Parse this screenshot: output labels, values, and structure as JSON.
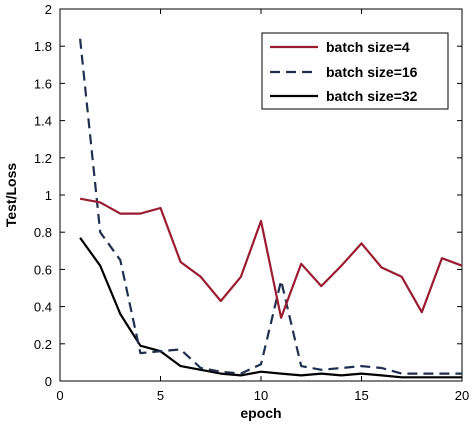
{
  "chart_data": {
    "type": "line",
    "xlabel": "epoch",
    "ylabel": "Test/Loss",
    "xlim": [
      0,
      20
    ],
    "ylim": [
      0,
      2
    ],
    "xticks": [
      0,
      5,
      10,
      15,
      20
    ],
    "yticks": [
      0,
      0.2,
      0.4,
      0.6,
      0.8,
      1,
      1.2,
      1.4,
      1.6,
      1.8,
      2
    ],
    "ytick_labels": [
      "0",
      "0.2",
      "0.4",
      "0.6",
      "0.8",
      "1",
      "1.2",
      "1.4",
      "1.6",
      "1.8",
      "2"
    ],
    "legend_position": "top-right",
    "grid": false,
    "series": [
      {
        "name": "batch size=4",
        "color": "#9b1b30",
        "style": "solid",
        "x": [
          1,
          2,
          3,
          4,
          5,
          6,
          7,
          8,
          9,
          10,
          11,
          12,
          13,
          14,
          15,
          16,
          17,
          18,
          19,
          20
        ],
        "y": [
          0.98,
          0.96,
          0.9,
          0.9,
          0.93,
          0.64,
          0.56,
          0.43,
          0.56,
          0.86,
          0.34,
          0.63,
          0.51,
          0.62,
          0.74,
          0.61,
          0.56,
          0.37,
          0.66,
          0.62
        ]
      },
      {
        "name": "batch size=16",
        "color": "#1f2f4f",
        "style": "dashed",
        "x": [
          1,
          2,
          3,
          4,
          5,
          6,
          7,
          8,
          9,
          10,
          11,
          12,
          13,
          14,
          15,
          16,
          17,
          18,
          19,
          20
        ],
        "y": [
          1.84,
          0.8,
          0.65,
          0.15,
          0.16,
          0.17,
          0.07,
          0.05,
          0.04,
          0.09,
          0.54,
          0.08,
          0.06,
          0.07,
          0.08,
          0.07,
          0.04,
          0.04,
          0.04,
          0.04
        ]
      },
      {
        "name": "batch size=32",
        "color": "#000000",
        "style": "solid",
        "x": [
          1,
          2,
          3,
          4,
          5,
          6,
          7,
          8,
          9,
          10,
          11,
          12,
          13,
          14,
          15,
          16,
          17,
          18,
          19,
          20
        ],
        "y": [
          0.77,
          0.62,
          0.36,
          0.19,
          0.16,
          0.08,
          0.06,
          0.04,
          0.03,
          0.05,
          0.04,
          0.03,
          0.04,
          0.03,
          0.04,
          0.03,
          0.02,
          0.02,
          0.02,
          0.02
        ]
      }
    ]
  }
}
